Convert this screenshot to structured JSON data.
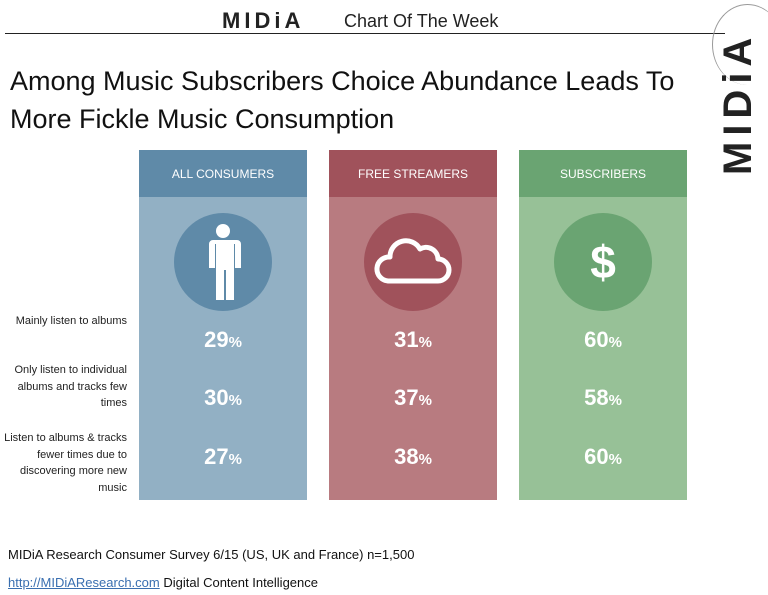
{
  "header": {
    "logo": "MIDiA",
    "subtitle": "Chart Of The Week"
  },
  "title": "Among Music Subscribers Choice Abundance Leads To More Fickle Music Consumption",
  "colors": {
    "all_consumers": [
      "#5f8aa8",
      "#92b0c4"
    ],
    "free_streamers": [
      "#a0525b",
      "#b87b80"
    ],
    "subscribers": [
      "#6aa472",
      "#97c197"
    ]
  },
  "chart_data": {
    "type": "table",
    "title": "Among Music Subscribers Choice Abundance Leads To More Fickle Music Consumption",
    "rows": [
      "Mainly listen to albums",
      "Only listen to individual albums and tracks few times",
      "Listen to albums & tracks fewer times due to discovering more new music"
    ],
    "series": [
      {
        "name": "ALL CONSUMERS",
        "icon": "person-icon",
        "values": [
          29,
          30,
          27
        ]
      },
      {
        "name": "FREE STREAMERS",
        "icon": "cloud-icon",
        "values": [
          31,
          37,
          38
        ]
      },
      {
        "name": "SUBSCRIBERS",
        "icon": "dollar-icon",
        "values": [
          60,
          58,
          60
        ]
      }
    ],
    "unit": "%"
  },
  "footer": {
    "source": "MIDiA Research Consumer Survey 6/15 (US, UK and France) n=1,500",
    "url": "http://MIDiAResearch.com",
    "tagline": "Digital Content Intelligence"
  }
}
